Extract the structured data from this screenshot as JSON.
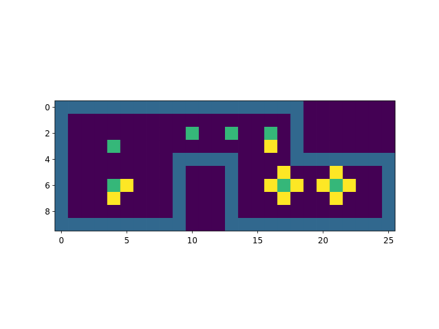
{
  "chart_data": {
    "type": "heatmap",
    "title": "",
    "xlabel": "",
    "ylabel": "",
    "colormap": "viridis",
    "palette": {
      "0": "#440154",
      "1": "#31688e",
      "2": "#35b779",
      "3": "#fde725"
    },
    "xlim": [
      -0.5,
      25.5
    ],
    "ylim": [
      9.5,
      -0.5
    ],
    "x_ticks": [
      0,
      5,
      10,
      15,
      20,
      25
    ],
    "y_ticks": [
      0,
      2,
      4,
      6,
      8
    ],
    "grid": [
      [
        1,
        1,
        1,
        1,
        1,
        1,
        1,
        1,
        1,
        1,
        1,
        1,
        1,
        1,
        1,
        1,
        1,
        1,
        1,
        0,
        0,
        0,
        0,
        0,
        0,
        0
      ],
      [
        1,
        0,
        0,
        0,
        0,
        0,
        0,
        0,
        0,
        0,
        0,
        0,
        0,
        0,
        0,
        0,
        0,
        0,
        1,
        0,
        0,
        0,
        0,
        0,
        0,
        0
      ],
      [
        1,
        0,
        0,
        0,
        0,
        0,
        0,
        0,
        0,
        0,
        2,
        0,
        0,
        2,
        0,
        0,
        2,
        0,
        1,
        0,
        0,
        0,
        0,
        0,
        0,
        0
      ],
      [
        1,
        0,
        0,
        0,
        2,
        0,
        0,
        0,
        0,
        0,
        0,
        0,
        0,
        0,
        0,
        0,
        3,
        0,
        1,
        0,
        0,
        0,
        0,
        0,
        0,
        0
      ],
      [
        1,
        0,
        0,
        0,
        0,
        0,
        0,
        0,
        0,
        1,
        1,
        1,
        1,
        1,
        0,
        0,
        0,
        0,
        1,
        1,
        1,
        1,
        1,
        1,
        1,
        1
      ],
      [
        1,
        0,
        0,
        0,
        0,
        0,
        0,
        0,
        0,
        1,
        0,
        0,
        0,
        1,
        0,
        0,
        0,
        3,
        0,
        0,
        0,
        3,
        0,
        0,
        0,
        1
      ],
      [
        1,
        0,
        0,
        0,
        2,
        3,
        0,
        0,
        0,
        1,
        0,
        0,
        0,
        1,
        0,
        0,
        3,
        2,
        3,
        0,
        3,
        2,
        3,
        0,
        0,
        1
      ],
      [
        1,
        0,
        0,
        0,
        3,
        0,
        0,
        0,
        0,
        1,
        0,
        0,
        0,
        1,
        0,
        0,
        0,
        3,
        0,
        0,
        0,
        3,
        0,
        0,
        0,
        1
      ],
      [
        1,
        0,
        0,
        0,
        0,
        0,
        0,
        0,
        0,
        1,
        0,
        0,
        0,
        1,
        0,
        0,
        0,
        0,
        0,
        0,
        0,
        0,
        0,
        0,
        0,
        1
      ],
      [
        1,
        1,
        1,
        1,
        1,
        1,
        1,
        1,
        1,
        1,
        0,
        0,
        0,
        1,
        1,
        1,
        1,
        1,
        1,
        1,
        1,
        1,
        1,
        1,
        1,
        1
      ]
    ]
  }
}
